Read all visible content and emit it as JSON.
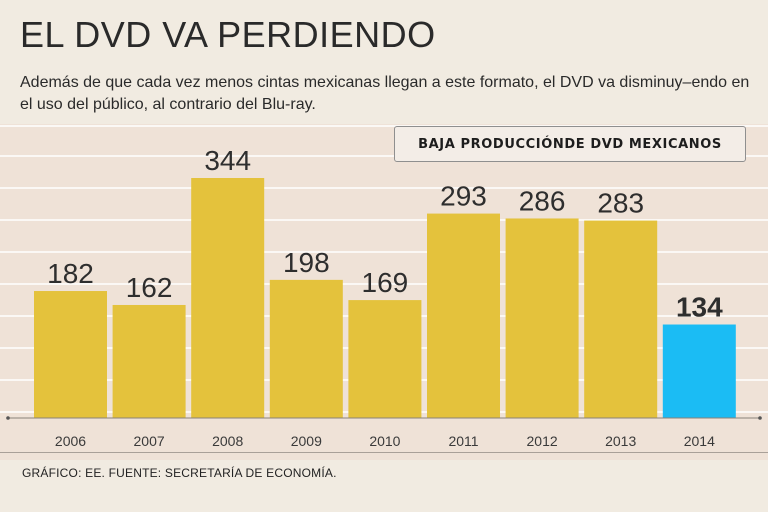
{
  "header": {
    "title": "EL DVD VA PERDIENDO",
    "subtitle": "Además de que cada vez menos cintas mexicanas llegan a este formato, el DVD va disminuy–endo en el uso del público, al contrario del Blu-ray."
  },
  "legend_box": {
    "label": "BAJA PRODUCCIÓNDE DVD MEXICANOS"
  },
  "footer": {
    "source": "GRÁFICO: EE. FUENTE: SECRETARÍA DE ECONOMÍA."
  },
  "colors": {
    "bar": "#e4c23c",
    "highlight": "#1bbcf4",
    "panel": "#efe2d7",
    "grid": "#ffffff"
  },
  "chart_data": {
    "type": "bar",
    "title": "BAJA PRODUCCIÓNDE DVD MEXICANOS",
    "categories": [
      "2006",
      "2007",
      "2008",
      "2009",
      "2010",
      "2011",
      "2012",
      "2013",
      "2014"
    ],
    "values": [
      182,
      162,
      344,
      198,
      169,
      293,
      286,
      283,
      134
    ],
    "value_labels": [
      "182",
      "162",
      "344",
      "198",
      "169",
      "293",
      "286",
      "283",
      "134"
    ],
    "highlight_index": 8,
    "ylim": [
      0,
      344
    ],
    "xlabel": "",
    "ylabel": "",
    "grid": true
  }
}
